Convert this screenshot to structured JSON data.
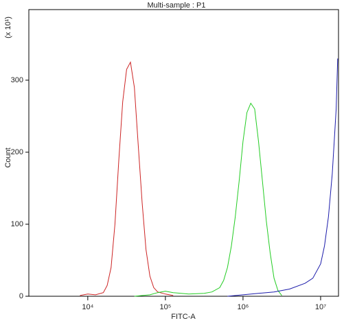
{
  "chart_data": {
    "type": "line",
    "title": "Multi-sample : P1",
    "xlabel": "FITC-A",
    "ylabel": "Count",
    "y_multiplier": "(x 10¹)",
    "xscale": "log",
    "xlim": [
      1740,
      17000000
    ],
    "ylim": [
      0,
      398
    ],
    "xticks": [
      {
        "value": 10000,
        "label": "10⁴"
      },
      {
        "value": 100000,
        "label": "10⁵"
      },
      {
        "value": 1000000,
        "label": "10⁶"
      },
      {
        "value": 10000000,
        "label": "10⁷"
      }
    ],
    "yticks": [
      0,
      100,
      200,
      300
    ],
    "series": [
      {
        "color": "#cc2222",
        "x": [
          7943,
          10000,
          12589,
          15849,
          17783,
          19953,
          22387,
          25119,
          28184,
          31623,
          35481,
          39811,
          44668,
          50119,
          56234,
          63096,
          70795,
          79433,
          100000,
          125893
        ],
        "values": [
          1,
          3,
          2,
          5,
          15,
          40,
          100,
          190,
          270,
          315,
          325,
          290,
          210,
          130,
          65,
          28,
          12,
          6,
          3,
          1
        ]
      },
      {
        "color": "#22cc22",
        "x": [
          39811,
          63096,
          79433,
          100000,
          125893,
          199526,
          316228,
          398107,
          501187,
          562341,
          630957,
          707946,
          794328,
          891251,
          1000000,
          1122018,
          1258925,
          1412538,
          1584893,
          1778279,
          1995262,
          2238721,
          2511886,
          2818383,
          3162278
        ],
        "values": [
          0,
          2,
          5,
          7,
          5,
          3,
          4,
          6,
          12,
          22,
          40,
          70,
          110,
          160,
          215,
          255,
          268,
          260,
          215,
          160,
          105,
          60,
          25,
          8,
          1
        ]
      },
      {
        "color": "#1a1aaa",
        "x": [
          630957,
          1000000,
          1584893,
          2511886,
          3981072,
          6309573,
          7943282,
          10000000,
          11220185,
          12589254,
          14125375,
          15848932,
          16595869
        ],
        "values": [
          0,
          2,
          4,
          6,
          10,
          18,
          25,
          45,
          70,
          110,
          170,
          260,
          330
        ]
      }
    ]
  }
}
